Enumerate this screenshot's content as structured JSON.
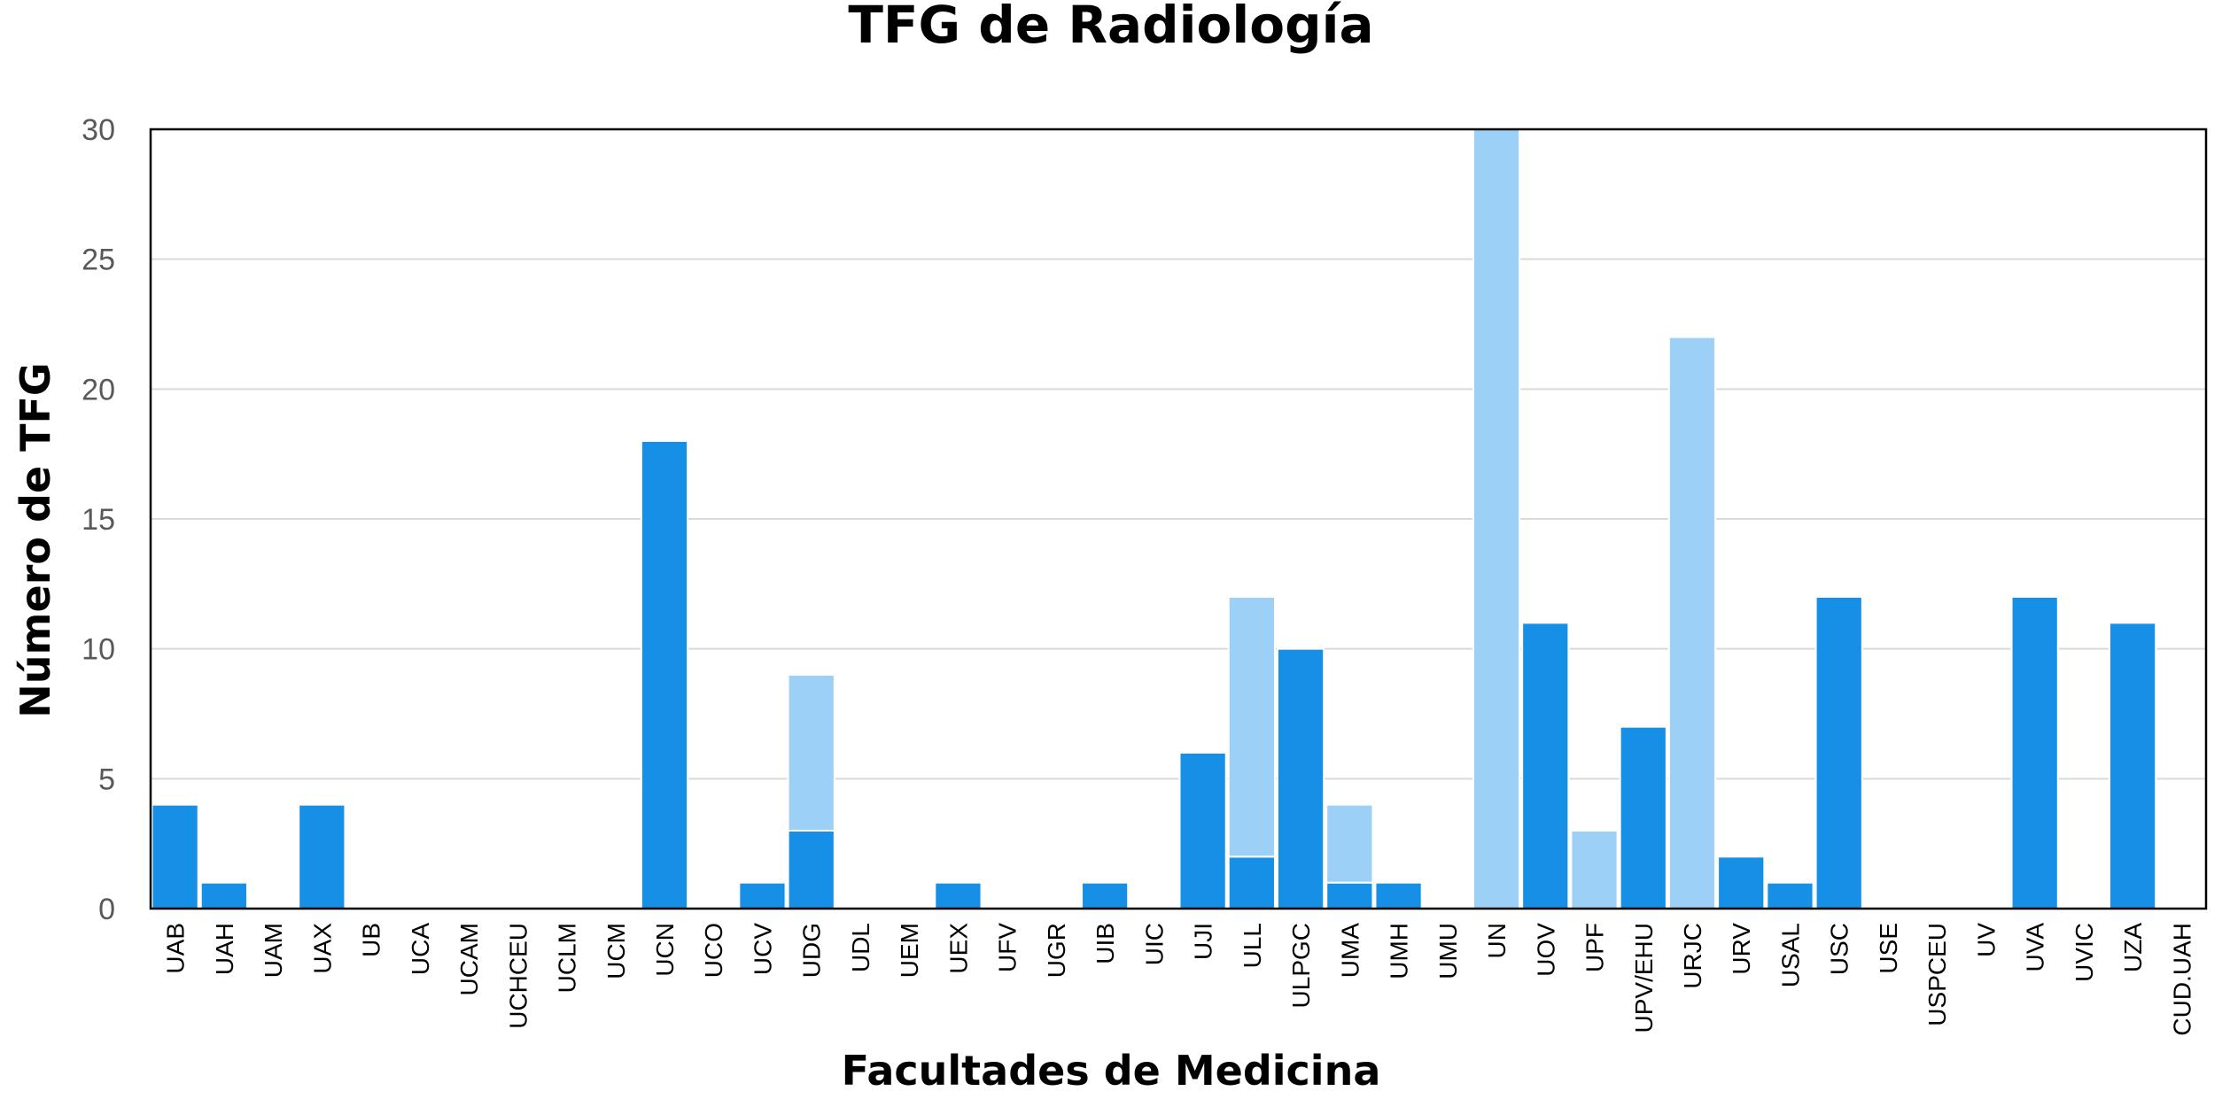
{
  "chart_data": {
    "type": "bar",
    "stacked": true,
    "title": "TFG de Radiología",
    "xlabel": "Facultades de Medicina",
    "ylabel": "Número de TFG",
    "ylim": [
      0,
      30
    ],
    "yticks": [
      0,
      5,
      10,
      15,
      20,
      25,
      30
    ],
    "grid": true,
    "categories": [
      "UAB",
      "UAH",
      "UAM",
      "UAX",
      "UB",
      "UCA",
      "UCAM",
      "UCHCEU",
      "UCLM",
      "UCM",
      "UCN",
      "UCO",
      "UCV",
      "UDG",
      "UDL",
      "UEM",
      "UEX",
      "UFV",
      "UGR",
      "UIB",
      "UIC",
      "UJI",
      "ULL",
      "ULPGC",
      "UMA",
      "UMH",
      "UMU",
      "UN",
      "UOV",
      "UPF",
      "UPV/EHU",
      "URJC",
      "URV",
      "USAL",
      "USC",
      "USE",
      "USPCEU",
      "UV",
      "UVA",
      "UVIC",
      "UZA",
      "CUD.UAH"
    ],
    "series": [
      {
        "values": [
          4,
          1,
          0,
          4,
          0,
          0,
          0,
          0,
          0,
          0,
          18,
          0,
          1,
          3,
          0,
          0,
          1,
          0,
          0,
          1,
          0,
          6,
          2,
          10,
          1,
          1,
          0,
          0,
          11,
          0,
          7,
          0,
          2,
          1,
          12,
          0,
          0,
          0,
          12,
          0,
          11,
          0
        ]
      },
      {
        "values": [
          0,
          0,
          0,
          0,
          0,
          0,
          0,
          0,
          0,
          0,
          0,
          0,
          0,
          6,
          0,
          0,
          0,
          0,
          0,
          0,
          0,
          0,
          10,
          0,
          3,
          0,
          0,
          30,
          0,
          3,
          0,
          22,
          0,
          0,
          0,
          0,
          0,
          0,
          0,
          0,
          0,
          0
        ]
      }
    ],
    "colors": [
      "#1690E6",
      "#9CD0F7"
    ]
  }
}
